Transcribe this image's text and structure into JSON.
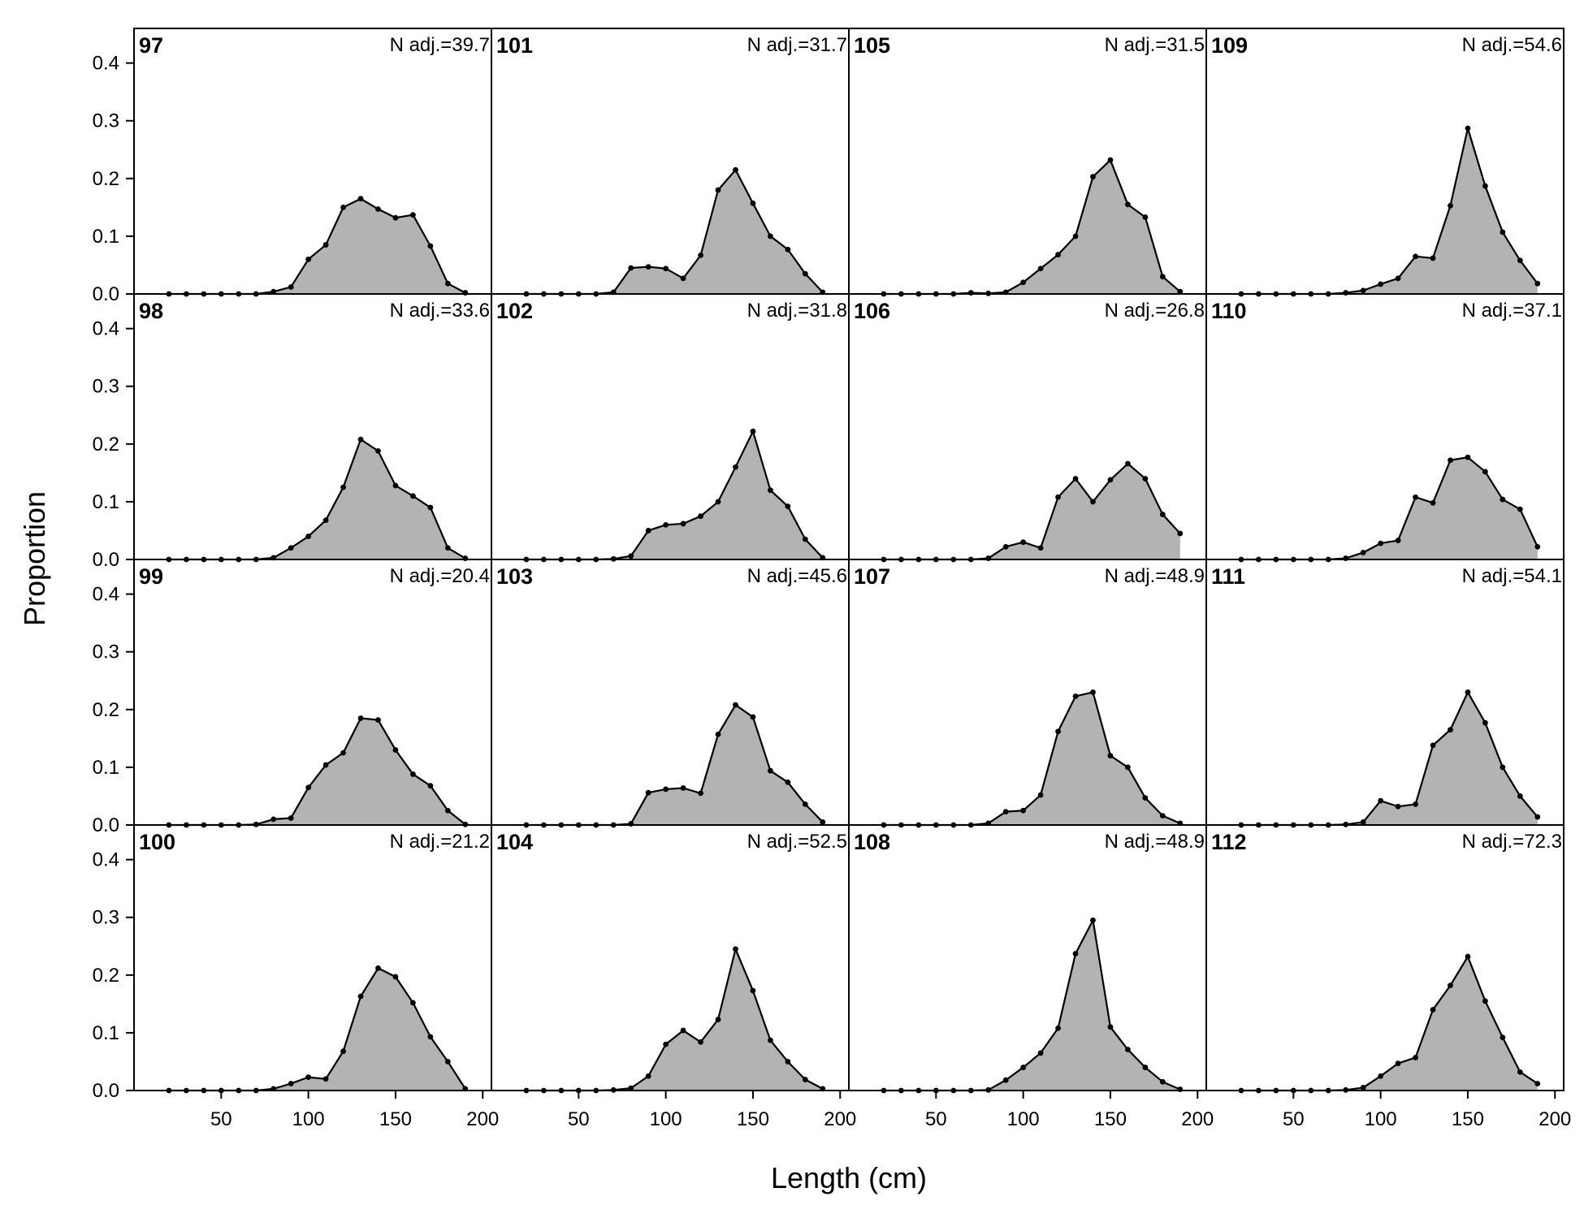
{
  "chart_data": {
    "type": "area",
    "xlabel": "Length (cm)",
    "ylabel": "Proportion",
    "xlim": [
      0,
      205
    ],
    "ylim": [
      0,
      0.46
    ],
    "x_ticks": [
      50,
      100,
      150,
      200
    ],
    "y_ticks": [
      0.0,
      0.1,
      0.2,
      0.3,
      0.4
    ],
    "y_tick_labels": [
      "0.0",
      "0.1",
      "0.2",
      "0.3",
      "0.4"
    ],
    "x": [
      20,
      30,
      40,
      50,
      60,
      70,
      80,
      90,
      100,
      110,
      120,
      130,
      140,
      150,
      160,
      170,
      180,
      190
    ],
    "fill_color": "#b3b3b3",
    "line_color": "#000000",
    "layout": "4 rows x 4 columns, filled column-wise",
    "panels": [
      {
        "year": "97",
        "n_adj": "N adj.=39.7",
        "values": [
          0,
          0,
          0,
          0,
          0,
          0,
          0.004,
          0.012,
          0.06,
          0.085,
          0.15,
          0.165,
          0.147,
          0.132,
          0.137,
          0.083,
          0.018,
          0.002
        ]
      },
      {
        "year": "98",
        "n_adj": "N adj.=33.6",
        "values": [
          0,
          0,
          0,
          0,
          0,
          0,
          0.003,
          0.02,
          0.04,
          0.068,
          0.125,
          0.208,
          0.188,
          0.128,
          0.11,
          0.09,
          0.02,
          0.002
        ]
      },
      {
        "year": "99",
        "n_adj": "N adj.=20.4",
        "values": [
          0,
          0,
          0,
          0,
          0,
          0.001,
          0.01,
          0.012,
          0.065,
          0.104,
          0.125,
          0.185,
          0.182,
          0.13,
          0.088,
          0.068,
          0.025,
          0.001
        ]
      },
      {
        "year": "100",
        "n_adj": "N adj.=21.2",
        "values": [
          0,
          0,
          0,
          0,
          0,
          0,
          0.003,
          0.012,
          0.023,
          0.02,
          0.068,
          0.163,
          0.212,
          0.197,
          0.152,
          0.093,
          0.05,
          0.003
        ]
      },
      {
        "year": "101",
        "n_adj": "N adj.=31.7",
        "values": [
          0,
          0,
          0,
          0,
          0,
          0.003,
          0.045,
          0.047,
          0.044,
          0.027,
          0.067,
          0.18,
          0.215,
          0.157,
          0.1,
          0.077,
          0.035,
          0.003
        ]
      },
      {
        "year": "102",
        "n_adj": "N adj.=31.8",
        "values": [
          0,
          0,
          0,
          0,
          0,
          0.001,
          0.006,
          0.05,
          0.06,
          0.062,
          0.075,
          0.1,
          0.16,
          0.222,
          0.12,
          0.092,
          0.035,
          0.003
        ]
      },
      {
        "year": "103",
        "n_adj": "N adj.=45.6",
        "values": [
          0,
          0,
          0,
          0,
          0,
          0,
          0.002,
          0.056,
          0.062,
          0.064,
          0.055,
          0.157,
          0.208,
          0.187,
          0.094,
          0.074,
          0.036,
          0.005
        ]
      },
      {
        "year": "104",
        "n_adj": "N adj.=52.5",
        "values": [
          0,
          0,
          0,
          0,
          0,
          0.001,
          0.004,
          0.025,
          0.08,
          0.104,
          0.084,
          0.123,
          0.245,
          0.173,
          0.087,
          0.05,
          0.019,
          0.003
        ]
      },
      {
        "year": "105",
        "n_adj": "N adj.=31.5",
        "values": [
          0,
          0,
          0,
          0,
          0,
          0.002,
          0.001,
          0.003,
          0.02,
          0.044,
          0.068,
          0.1,
          0.203,
          0.232,
          0.155,
          0.133,
          0.03,
          0.004
        ]
      },
      {
        "year": "106",
        "n_adj": "N adj.=26.8",
        "values": [
          0,
          0,
          0,
          0,
          0,
          0,
          0.002,
          0.022,
          0.03,
          0.02,
          0.108,
          0.14,
          0.1,
          0.138,
          0.166,
          0.14,
          0.078,
          0.045
        ]
      },
      {
        "year": "107",
        "n_adj": "N adj.=48.9",
        "values": [
          0,
          0,
          0,
          0,
          0,
          0,
          0.003,
          0.023,
          0.025,
          0.052,
          0.162,
          0.223,
          0.23,
          0.12,
          0.1,
          0.047,
          0.016,
          0.003
        ]
      },
      {
        "year": "108",
        "n_adj": "N adj.=48.9",
        "values": [
          0,
          0,
          0,
          0,
          0,
          0,
          0.001,
          0.018,
          0.04,
          0.065,
          0.108,
          0.237,
          0.295,
          0.11,
          0.071,
          0.04,
          0.015,
          0.002
        ]
      },
      {
        "year": "109",
        "n_adj": "N adj.=54.6",
        "values": [
          0,
          0,
          0,
          0,
          0,
          0,
          0.002,
          0.006,
          0.017,
          0.027,
          0.065,
          0.062,
          0.153,
          0.287,
          0.187,
          0.107,
          0.058,
          0.018
        ]
      },
      {
        "year": "110",
        "n_adj": "N adj.=37.1",
        "values": [
          0,
          0,
          0,
          0,
          0,
          0,
          0.002,
          0.012,
          0.028,
          0.033,
          0.108,
          0.098,
          0.172,
          0.177,
          0.152,
          0.104,
          0.087,
          0.022
        ]
      },
      {
        "year": "111",
        "n_adj": "N adj.=54.1",
        "values": [
          0,
          0,
          0,
          0,
          0,
          0,
          0.001,
          0.005,
          0.042,
          0.032,
          0.036,
          0.138,
          0.165,
          0.23,
          0.177,
          0.1,
          0.05,
          0.014
        ]
      },
      {
        "year": "112",
        "n_adj": "N adj.=72.3",
        "values": [
          0,
          0,
          0,
          0,
          0,
          0,
          0.001,
          0.005,
          0.025,
          0.047,
          0.057,
          0.14,
          0.182,
          0.232,
          0.155,
          0.092,
          0.032,
          0.012
        ]
      }
    ]
  }
}
